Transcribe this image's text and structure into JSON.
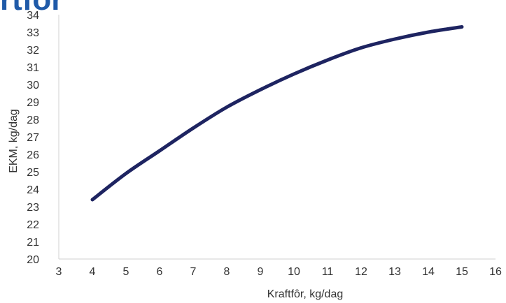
{
  "header": {
    "title_fragment": "rtfôr"
  },
  "chart_data": {
    "type": "line",
    "title": "",
    "xlabel": "Kraftfôr, kg/dag",
    "ylabel": "EKM, kg/dag",
    "xlim": [
      3,
      16
    ],
    "ylim": [
      20,
      34
    ],
    "x_ticks": [
      3,
      4,
      5,
      6,
      7,
      8,
      9,
      10,
      11,
      12,
      13,
      14,
      15,
      16
    ],
    "y_ticks": [
      20,
      21,
      22,
      23,
      24,
      25,
      26,
      27,
      28,
      29,
      30,
      31,
      32,
      33,
      34
    ],
    "grid": false,
    "legend": "none",
    "series": [
      {
        "color": "#1e2461",
        "x": [
          4,
          5,
          6,
          7,
          8,
          9,
          10,
          11,
          12,
          13,
          14,
          15
        ],
        "y": [
          23.4,
          24.9,
          26.2,
          27.5,
          28.7,
          29.7,
          30.6,
          31.4,
          32.1,
          32.6,
          33.0,
          33.3
        ]
      }
    ]
  }
}
